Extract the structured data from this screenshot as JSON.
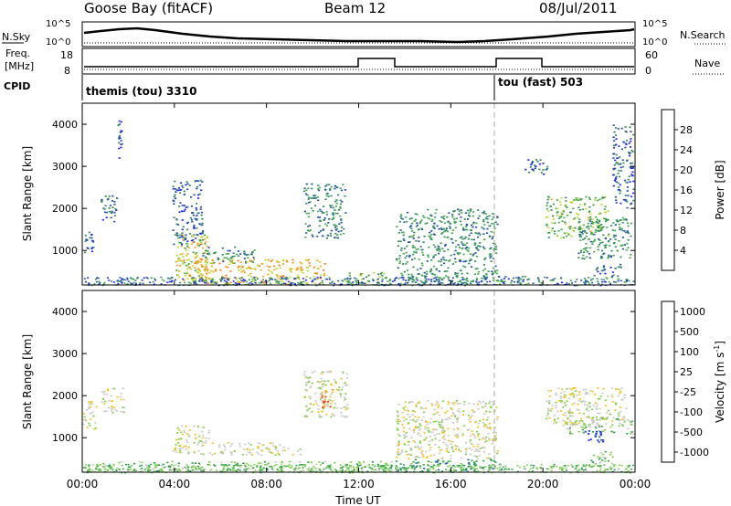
{
  "header": {
    "station": "Goose Bay (fitACF)",
    "beam": "Beam 12",
    "date": "08/Jul/2011"
  },
  "top_panels": {
    "nsky_label": "N.Sky",
    "nsearch_label": "N.Search",
    "nsky_ticks": [
      "10^5",
      "10^0"
    ],
    "nsearch_ticks": [
      "10^5",
      "10^0"
    ],
    "freq_label_1": "Freq.",
    "freq_label_2": "[MHz]",
    "freq_ticks": [
      "18",
      "8"
    ],
    "nave_label": "Nave",
    "nave_ticks": [
      "60",
      "0"
    ],
    "cpid_label": "CPID",
    "cpid_1": "themis (tou) 3310",
    "cpid_2": "tou (fast) 503"
  },
  "chart_data": [
    {
      "type": "heatmap",
      "name": "power",
      "ylabel": "Slant Range [km]",
      "xlabel": "",
      "xlim": [
        0,
        24
      ],
      "ylim": [
        180,
        4500
      ],
      "yticks": [
        1000,
        2000,
        3000,
        4000
      ],
      "colorbar": {
        "label": "Power [dB]",
        "ticks": [
          "4",
          "8",
          "12",
          "16",
          "20",
          "24",
          "28"
        ],
        "range": [
          0,
          30
        ],
        "colors": [
          "#1e22ff",
          "#1f4fa8",
          "#2e8a5e",
          "#3fa94c",
          "#bcd72a",
          "#f2a21a",
          "#ff7a10",
          "#ff2a10"
        ]
      },
      "regions": [
        {
          "t0": 0.0,
          "t1": 0.45,
          "r0": 900,
          "r1": 1500,
          "v": 7
        },
        {
          "t0": 0.8,
          "t1": 1.5,
          "r0": 1700,
          "r1": 2400,
          "v": 6
        },
        {
          "t0": 1.5,
          "t1": 1.7,
          "r0": 3200,
          "r1": 4100,
          "v": 5
        },
        {
          "t0": 3.9,
          "t1": 5.2,
          "r0": 1100,
          "r1": 2700,
          "v": 6
        },
        {
          "t0": 4.0,
          "t1": 5.5,
          "r0": 300,
          "r1": 1400,
          "v": 18
        },
        {
          "t0": 5.2,
          "t1": 7.5,
          "r0": 700,
          "r1": 1100,
          "v": 10
        },
        {
          "t0": 4.5,
          "t1": 10.5,
          "r0": 200,
          "r1": 800,
          "v": 20
        },
        {
          "t0": 9.6,
          "t1": 11.4,
          "r0": 1300,
          "r1": 2600,
          "v": 9
        },
        {
          "t0": 11.4,
          "t1": 13.4,
          "r0": 200,
          "r1": 500,
          "v": 12
        },
        {
          "t0": 13.6,
          "t1": 18.0,
          "r0": 200,
          "r1": 2000,
          "v": 10
        },
        {
          "t0": 18.0,
          "t1": 19.4,
          "r0": 200,
          "r1": 400,
          "v": 10
        },
        {
          "t0": 19.2,
          "t1": 20.2,
          "r0": 2800,
          "r1": 3200,
          "v": 6
        },
        {
          "t0": 20.1,
          "t1": 22.8,
          "r0": 1300,
          "r1": 2300,
          "v": 14
        },
        {
          "t0": 21.5,
          "t1": 23.8,
          "r0": 800,
          "r1": 1800,
          "v": 10
        },
        {
          "t0": 23.0,
          "t1": 23.9,
          "r0": 2000,
          "r1": 4000,
          "v": 6
        },
        {
          "t0": 22.2,
          "t1": 23.4,
          "r0": 400,
          "r1": 700,
          "v": 6
        }
      ]
    },
    {
      "type": "heatmap",
      "name": "velocity",
      "ylabel": "Slant Range [km]",
      "xlabel": "Time UT",
      "xlim": [
        0,
        24
      ],
      "ylim": [
        180,
        4500
      ],
      "yticks": [
        1000,
        2000,
        3000,
        4000
      ],
      "xticks": [
        "00:00",
        "04:00",
        "08:00",
        "12:00",
        "16:00",
        "20:00",
        "00:00"
      ],
      "colorbar": {
        "label": "Velocity [m s-1]",
        "ticks": [
          "1000",
          "500",
          "100",
          "25",
          "-25",
          "-100",
          "-500",
          "-1000"
        ],
        "colors": [
          "#1e2cff",
          "#1e5fb0",
          "#2aa04a",
          "#7ed04a",
          "#c9c9c9",
          "#f7c11a",
          "#ff8a10",
          "#ff2a10"
        ]
      },
      "regions": [
        {
          "t0": 0.0,
          "t1": 0.6,
          "r0": 1200,
          "r1": 1900,
          "v": 4
        },
        {
          "t0": 0.8,
          "t1": 1.8,
          "r0": 1600,
          "r1": 2200,
          "v": 4
        },
        {
          "t0": 3.9,
          "t1": 5.5,
          "r0": 600,
          "r1": 1300,
          "v": 4
        },
        {
          "t0": 5.5,
          "t1": 9.5,
          "r0": 600,
          "r1": 900,
          "v": 4
        },
        {
          "t0": 0.2,
          "t1": 13.4,
          "r0": 200,
          "r1": 450,
          "v": 3
        },
        {
          "t0": 9.6,
          "t1": 11.5,
          "r0": 1500,
          "r1": 2600,
          "v": 4
        },
        {
          "t0": 10.3,
          "t1": 10.9,
          "r0": 1700,
          "r1": 2200,
          "v": 6
        },
        {
          "t0": 13.6,
          "t1": 18.0,
          "r0": 500,
          "r1": 1900,
          "v": 4
        },
        {
          "t0": 13.6,
          "t1": 18.2,
          "r0": 200,
          "r1": 500,
          "v": 2
        },
        {
          "t0": 20.1,
          "t1": 23.6,
          "r0": 1300,
          "r1": 2200,
          "v": 4
        },
        {
          "t0": 21.0,
          "t1": 23.9,
          "r0": 1100,
          "r1": 1500,
          "v": 3
        },
        {
          "t0": 21.8,
          "t1": 22.6,
          "r0": 900,
          "r1": 1200,
          "v": 0
        },
        {
          "t0": 22.0,
          "t1": 23.0,
          "r0": 300,
          "r1": 700,
          "v": 3
        }
      ]
    }
  ]
}
